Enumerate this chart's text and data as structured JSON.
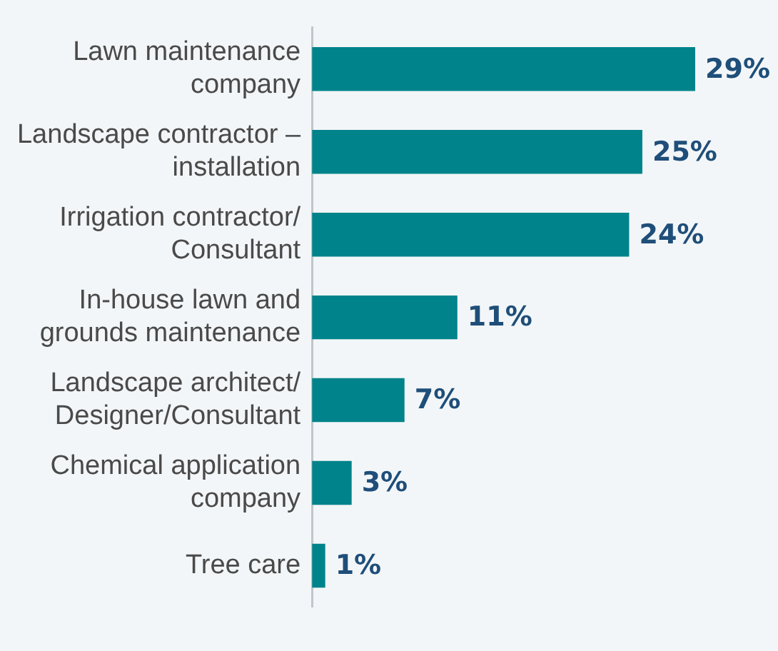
{
  "chart_data": {
    "type": "bar",
    "orientation": "horizontal",
    "categories": [
      "Lawn maintenance company",
      "Landscape contractor – installation",
      "Irrigation contractor/ Consultant",
      "In-house lawn and grounds maintenance",
      "Landscape architect/ Designer/Consultant",
      "Chemical application company",
      "Tree care"
    ],
    "values": [
      29,
      25,
      24,
      11,
      7,
      3,
      1
    ],
    "value_labels": [
      "29%",
      "25%",
      "24%",
      "11%",
      "7%",
      "3%",
      "1%"
    ],
    "color": "#00838a",
    "legend": false
  }
}
